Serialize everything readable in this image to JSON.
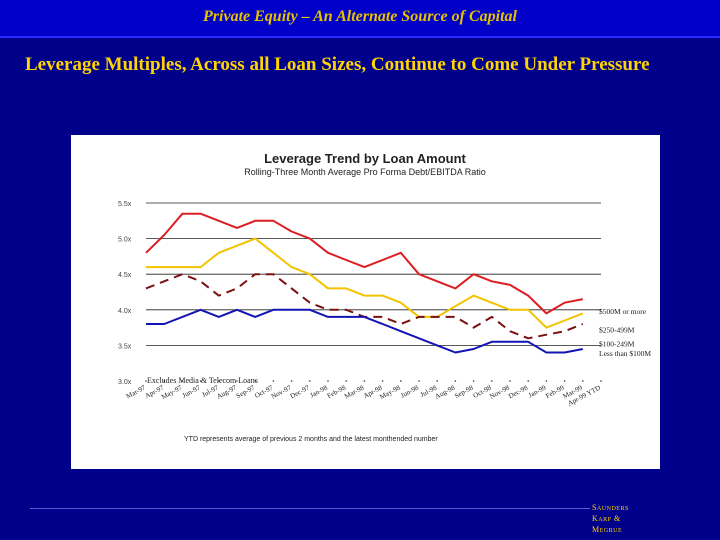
{
  "header": {
    "title": "Private Equity – An Alternate Source of Capital"
  },
  "slide": {
    "title": "Leverage Multiples, Across all Loan Sizes, Continue to Come Under Pressure"
  },
  "logo": {
    "lines": [
      "Saunders",
      "Karp &",
      "Megrue"
    ]
  },
  "colors": {
    "background": "#00008a",
    "topbar": "#0000c8",
    "title": "#ffd400",
    "red": "#dc1e23",
    "yellow": "#f2c400",
    "darkred": "#7a1010",
    "blue": "#1414b4"
  },
  "chart_data": {
    "type": "line",
    "title": "Leverage Trend by Loan Amount",
    "subtitle": "Rolling-Three Month Average Pro Forma Debt/EBITDA Ratio",
    "xlabel": "",
    "ylabel": "",
    "ylim": [
      3.0,
      5.5
    ],
    "yticks": [
      "5.5x",
      "5.0x",
      "4.5x",
      "4.0x",
      "3.5x",
      "3.0x"
    ],
    "y_tick_values": [
      5.5,
      5.0,
      4.5,
      4.0,
      3.5,
      3.0
    ],
    "grid": "horizontal",
    "categories": [
      "Mar-97",
      "Apr-97",
      "May-97",
      "Jun-97",
      "Jul-97",
      "Aug-97",
      "Sep-97",
      "Oct-97",
      "Nov-97",
      "Dec-97",
      "Jan-98",
      "Feb-98",
      "Mar-98",
      "Apr-98",
      "May-98",
      "Jun-98",
      "Jul-98",
      "Aug-98",
      "Sep-98",
      "Oct-98",
      "Nov-98",
      "Dec-98",
      "Jan-99",
      "Feb-99",
      "Mar-99",
      "Apr-99 YTD"
    ],
    "x_labels": [
      "Mar-97",
      "Apr-97",
      "May-97",
      "Jun-97",
      "Jul-97",
      "Aug-97",
      "Sep-97",
      "Oct-97",
      "Nov-97",
      "Dec-97",
      "Jan-98",
      "Feb-98",
      "Mar-98",
      "Apr-98",
      "May-98",
      "Jun-98",
      "Jul-98",
      "Aug-98",
      "Sep-98",
      "Oct-98",
      "Nov-98",
      "Dec-98",
      "Jan-99",
      "Feb-99",
      "Mar-99",
      "Apr-99 YTD"
    ],
    "series": [
      {
        "name": "$500M or more",
        "color": "#dc1e23",
        "dash": "",
        "values": [
          4.8,
          5.05,
          5.35,
          5.35,
          5.25,
          5.15,
          5.25,
          5.25,
          5.1,
          5.0,
          4.8,
          4.7,
          4.6,
          4.7,
          4.8,
          4.5,
          4.4,
          4.3,
          4.5,
          4.4,
          4.35,
          4.2,
          3.95,
          4.1,
          4.15,
          null
        ]
      },
      {
        "name": "$250-499M",
        "color": "#f2c400",
        "dash": "",
        "values": [
          4.6,
          4.6,
          4.6,
          4.6,
          4.8,
          4.9,
          5.0,
          4.8,
          4.6,
          4.5,
          4.3,
          4.3,
          4.2,
          4.2,
          4.1,
          3.9,
          3.9,
          4.05,
          4.2,
          4.1,
          4.0,
          4.0,
          3.75,
          3.85,
          3.95,
          null
        ]
      },
      {
        "name": "$100-249M",
        "color": "#7a1010",
        "dash": "9,6",
        "values": [
          4.3,
          4.4,
          4.5,
          4.4,
          4.2,
          4.3,
          4.5,
          4.5,
          4.3,
          4.1,
          4.0,
          4.0,
          3.9,
          3.9,
          3.8,
          3.9,
          3.9,
          3.9,
          3.75,
          3.9,
          3.7,
          3.6,
          3.65,
          3.7,
          3.8,
          null
        ]
      },
      {
        "name": "Less than $100M",
        "color": "#1414b4",
        "dash": "",
        "values": [
          3.8,
          3.8,
          3.9,
          4.0,
          3.9,
          4.0,
          3.9,
          4.0,
          4.0,
          4.0,
          3.9,
          3.9,
          3.9,
          3.8,
          3.7,
          3.6,
          3.5,
          3.4,
          3.45,
          3.55,
          3.55,
          3.55,
          3.4,
          3.4,
          3.45,
          null
        ]
      }
    ],
    "legend": "right of lines, inline labels",
    "annotations": [
      "Excludes Media & Telecom Loans",
      "YTD represents average of previous 2 months and the latest monthended number"
    ]
  }
}
